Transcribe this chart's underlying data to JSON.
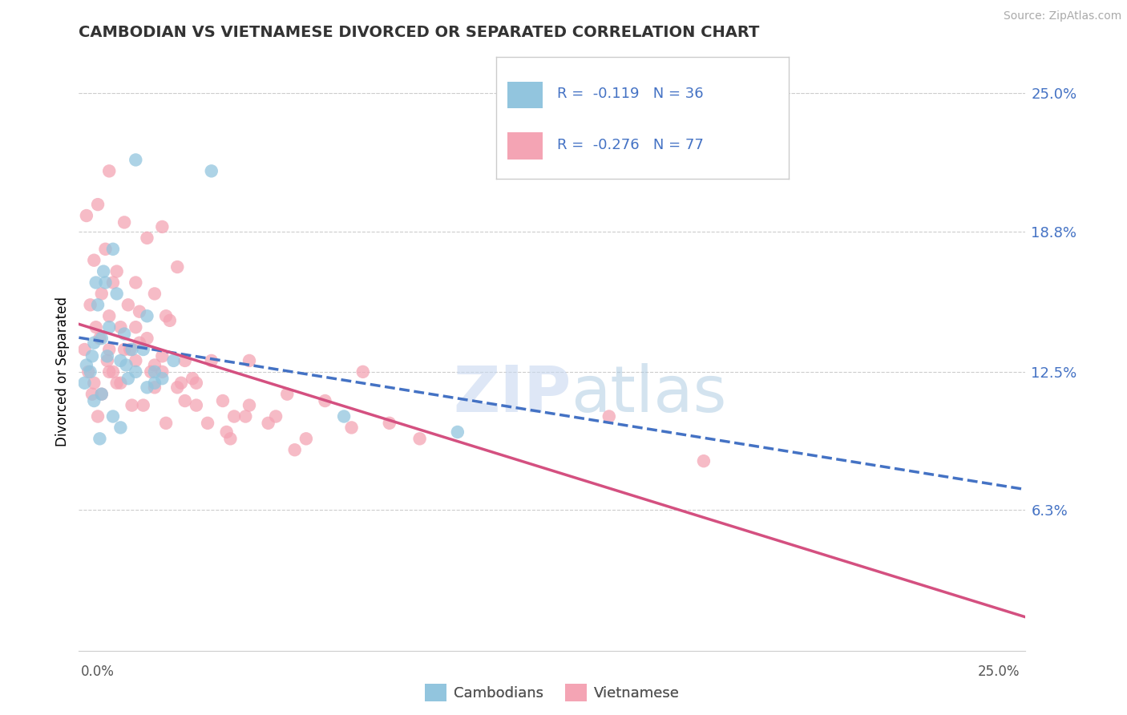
{
  "title": "CAMBODIAN VS VIETNAMESE DIVORCED OR SEPARATED CORRELATION CHART",
  "source": "Source: ZipAtlas.com",
  "ylabel": "Divorced or Separated",
  "legend_cambodian": "R =  -0.119   N = 36",
  "legend_vietnamese": "R =  -0.276   N = 77",
  "watermark_zip": "ZIP",
  "watermark_atlas": "atlas",
  "xlim": [
    0,
    25
  ],
  "ylim": [
    0,
    25
  ],
  "yticks": [
    6.3,
    12.5,
    18.8,
    25.0
  ],
  "ytick_labels": [
    "6.3%",
    "12.5%",
    "18.8%",
    "25.0%"
  ],
  "color_cambodian": "#92c5de",
  "color_vietnamese": "#f4a4b4",
  "color_regression_blue": "#4472c4",
  "color_regression_pink": "#d45080",
  "color_text_blue": "#4472c4",
  "color_grid": "#cccccc",
  "cambodian_x": [
    1.5,
    3.5,
    0.3,
    0.6,
    0.4,
    0.8,
    1.0,
    0.2,
    0.5,
    0.7,
    1.2,
    1.8,
    0.35,
    0.65,
    0.9,
    1.4,
    0.45,
    1.1,
    1.3,
    2.0,
    2.5,
    0.15,
    0.75,
    1.25,
    1.7,
    2.2,
    0.6,
    1.5,
    2.0,
    0.4,
    0.9,
    1.8,
    0.55,
    1.1,
    7.0,
    10.0
  ],
  "cambodian_y": [
    22.0,
    21.5,
    12.5,
    14.0,
    13.8,
    14.5,
    16.0,
    12.8,
    15.5,
    16.5,
    14.2,
    15.0,
    13.2,
    17.0,
    18.0,
    13.5,
    16.5,
    13.0,
    12.2,
    12.5,
    13.0,
    12.0,
    13.2,
    12.8,
    13.5,
    12.2,
    11.5,
    12.5,
    12.0,
    11.2,
    10.5,
    11.8,
    9.5,
    10.0,
    10.5,
    9.8
  ],
  "vietnamese_x": [
    0.2,
    0.5,
    0.8,
    1.2,
    1.8,
    2.2,
    0.4,
    0.7,
    1.0,
    1.5,
    2.0,
    2.6,
    0.3,
    0.6,
    0.9,
    1.6,
    2.4,
    0.45,
    0.8,
    1.3,
    1.8,
    2.8,
    0.15,
    0.55,
    1.1,
    1.6,
    2.2,
    3.1,
    0.25,
    0.75,
    1.35,
    2.0,
    3.0,
    0.4,
    0.9,
    1.5,
    2.6,
    3.8,
    0.6,
    1.1,
    1.9,
    2.8,
    4.1,
    0.35,
    1.0,
    1.7,
    3.4,
    4.5,
    0.5,
    1.4,
    2.3,
    3.9,
    5.2,
    0.8,
    2.0,
    3.1,
    5.0,
    6.0,
    1.2,
    2.7,
    4.4,
    5.7,
    7.5,
    1.5,
    3.5,
    5.5,
    7.2,
    9.0,
    2.3,
    4.5,
    6.5,
    8.2,
    14.0,
    16.5,
    0.8,
    2.2,
    4.0
  ],
  "vietnamese_y": [
    19.5,
    20.0,
    21.5,
    19.2,
    18.5,
    19.0,
    17.5,
    18.0,
    17.0,
    16.5,
    16.0,
    17.2,
    15.5,
    16.0,
    16.5,
    15.2,
    14.8,
    14.5,
    15.0,
    15.5,
    14.0,
    13.0,
    13.5,
    14.0,
    14.5,
    13.8,
    13.2,
    12.0,
    12.5,
    13.0,
    13.5,
    12.8,
    12.2,
    12.0,
    12.5,
    13.0,
    11.8,
    11.2,
    11.5,
    12.0,
    12.5,
    11.2,
    10.5,
    11.5,
    12.0,
    11.0,
    10.2,
    11.0,
    10.5,
    11.0,
    10.2,
    9.8,
    10.5,
    12.5,
    11.8,
    11.0,
    10.2,
    9.5,
    13.5,
    12.0,
    10.5,
    9.0,
    12.5,
    14.5,
    13.0,
    11.5,
    10.0,
    9.5,
    15.0,
    13.0,
    11.2,
    10.2,
    10.5,
    8.5,
    13.5,
    12.5,
    9.5
  ]
}
